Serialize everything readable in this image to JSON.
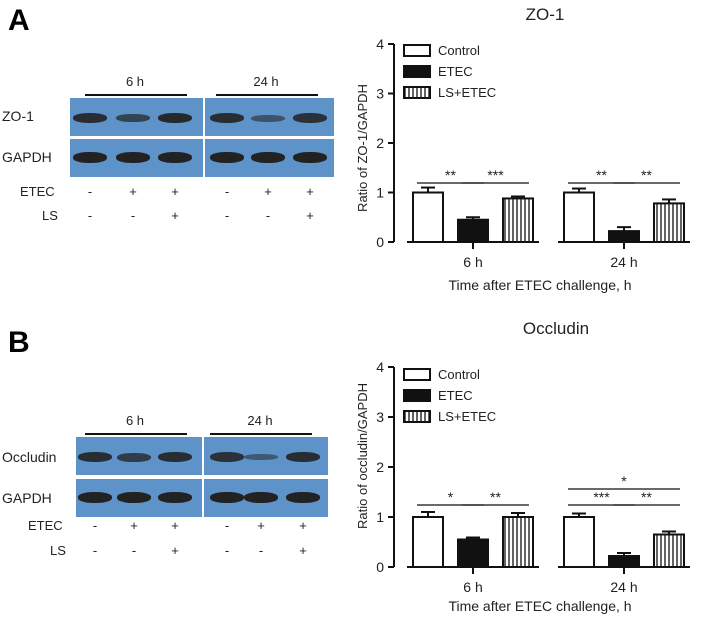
{
  "panels": [
    {
      "letter": "A",
      "time_labels": [
        "6 h",
        "24 h"
      ],
      "rows": [
        "ZO-1",
        "GAPDH"
      ],
      "cond_labels": [
        "ETEC",
        "LS"
      ],
      "etec_signs": [
        "-",
        "+",
        "+",
        "-",
        "+",
        "+"
      ],
      "ls_signs": [
        "-",
        "-",
        "+",
        "-",
        "-",
        "+"
      ],
      "band_intensity": [
        [
          0.85,
          0.55,
          0.9,
          0.85,
          0.35,
          0.8
        ],
        [
          1,
          1,
          1,
          1,
          1,
          1
        ]
      ]
    },
    {
      "letter": "B",
      "time_labels": [
        "6 h",
        "24 h"
      ],
      "rows": [
        "Occludin",
        "GAPDH"
      ],
      "cond_labels": [
        "ETEC",
        "LS"
      ],
      "etec_signs": [
        "-",
        "+",
        "+",
        "-",
        "+",
        "+"
      ],
      "ls_signs": [
        "-",
        "-",
        "+",
        "-",
        "-",
        "+"
      ],
      "band_intensity": [
        [
          0.85,
          0.65,
          0.85,
          0.8,
          0.25,
          0.85
        ],
        [
          1,
          1,
          1,
          1,
          1,
          1
        ]
      ]
    }
  ],
  "chart_data": [
    {
      "type": "bar",
      "title": "ZO-1",
      "ylabel": "Ratio of ZO-1/GAPDH",
      "xlabel": "Time after ETEC challenge, h",
      "categories": [
        "6 h",
        "24 h"
      ],
      "ylim": [
        0,
        4
      ],
      "yticks": [
        "0",
        "1",
        "2",
        "3",
        "4"
      ],
      "series": [
        {
          "name": "Control",
          "values": [
            1.0,
            1.0
          ],
          "errors": [
            0.1,
            0.08
          ],
          "fill": "#ffffff",
          "pattern": "none"
        },
        {
          "name": "ETEC",
          "values": [
            0.45,
            0.22
          ],
          "errors": [
            0.05,
            0.08
          ],
          "fill": "#111111",
          "pattern": "none"
        },
        {
          "name": "LS+ETEC",
          "values": [
            0.88,
            0.78
          ],
          "errors": [
            0.04,
            0.08
          ],
          "fill": "#ffffff",
          "pattern": "vertical"
        }
      ],
      "significance": [
        {
          "group": 0,
          "from": 0,
          "to": 1,
          "label": "**",
          "level": 0
        },
        {
          "group": 0,
          "from": 1,
          "to": 2,
          "label": "***",
          "level": 0
        },
        {
          "group": 1,
          "from": 0,
          "to": 1,
          "label": "**",
          "level": 0
        },
        {
          "group": 1,
          "from": 1,
          "to": 2,
          "label": "**",
          "level": 0
        }
      ],
      "legend_position": "top-left"
    },
    {
      "type": "bar",
      "title": "Occludin",
      "ylabel": "Ratio of occludin/GAPDH",
      "xlabel": "Time after ETEC challenge, h",
      "categories": [
        "6 h",
        "24 h"
      ],
      "ylim": [
        0,
        4
      ],
      "yticks": [
        "0",
        "1",
        "2",
        "3",
        "4"
      ],
      "series": [
        {
          "name": "Control",
          "values": [
            1.0,
            1.0
          ],
          "errors": [
            0.1,
            0.07
          ],
          "fill": "#ffffff",
          "pattern": "none"
        },
        {
          "name": "ETEC",
          "values": [
            0.55,
            0.22
          ],
          "errors": [
            0.04,
            0.06
          ],
          "fill": "#111111",
          "pattern": "none"
        },
        {
          "name": "LS+ETEC",
          "values": [
            1.0,
            0.65
          ],
          "errors": [
            0.08,
            0.06
          ],
          "fill": "#ffffff",
          "pattern": "vertical"
        }
      ],
      "significance": [
        {
          "group": 0,
          "from": 0,
          "to": 1,
          "label": "*",
          "level": 0
        },
        {
          "group": 0,
          "from": 1,
          "to": 2,
          "label": "**",
          "level": 0
        },
        {
          "group": 1,
          "from": 0,
          "to": 1,
          "label": "***",
          "level": 0
        },
        {
          "group": 1,
          "from": 1,
          "to": 2,
          "label": "**",
          "level": 0
        },
        {
          "group": 1,
          "from": 0,
          "to": 2,
          "label": "*",
          "level": 1
        }
      ],
      "legend_position": "top-left"
    }
  ]
}
